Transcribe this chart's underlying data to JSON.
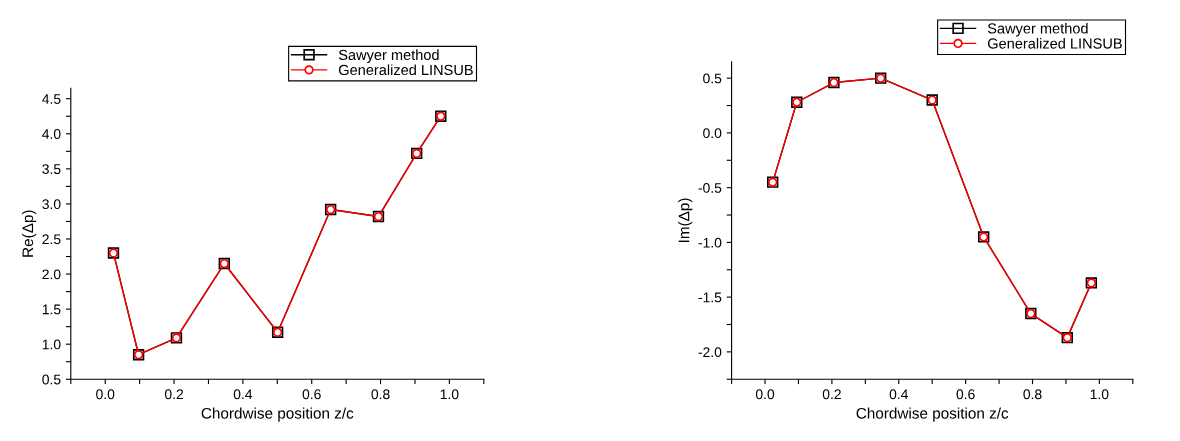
{
  "chart_data": [
    {
      "type": "line",
      "xlabel": "Chordwise position z/c",
      "ylabel": "Re(Δp)",
      "xlim": [
        -0.1,
        1.1
      ],
      "ylim": [
        0.5,
        4.65
      ],
      "xticks": [
        {
          "value": -0.1,
          "label": null
        },
        {
          "value": 0,
          "label": "0.0"
        },
        {
          "value": 0.1,
          "label": null
        },
        0.2,
        {
          "value": 0.3,
          "label": null
        },
        0.4,
        {
          "value": 0.5,
          "label": null
        },
        0.6,
        {
          "value": 0.7,
          "label": null
        },
        0.8,
        {
          "value": 0.9,
          "label": null
        },
        {
          "value": 1,
          "label": "1.0"
        },
        {
          "value": 1.1,
          "label": null
        }
      ],
      "yticks": [
        0.5,
        {
          "value": 0.75,
          "label": null
        },
        {
          "value": 1,
          "label": "1.0"
        },
        {
          "value": 1.25,
          "label": null
        },
        1.5,
        {
          "value": 1.75,
          "label": null
        },
        {
          "value": 2,
          "label": "2.0"
        },
        {
          "value": 2.25,
          "label": null
        },
        2.5,
        {
          "value": 2.75,
          "label": null
        },
        {
          "value": 3,
          "label": "3.0"
        },
        {
          "value": 3.25,
          "label": null
        },
        3.5,
        {
          "value": 3.75,
          "label": null
        },
        {
          "value": 4,
          "label": "4.0"
        },
        {
          "value": 4.25,
          "label": null
        },
        4.5
      ],
      "x": [
        0.024,
        0.097,
        0.207,
        0.346,
        0.501,
        0.655,
        0.794,
        0.905,
        0.975
      ],
      "series": [
        {
          "name": "Sawyer method",
          "color": "#000000",
          "marker": "square",
          "values": [
            2.3,
            0.85,
            1.09,
            2.15,
            1.17,
            2.92,
            2.82,
            3.72,
            4.25
          ]
        },
        {
          "name": "Generalized LINSUB",
          "color": "#ff0000",
          "marker": "circle",
          "values": [
            2.3,
            0.85,
            1.09,
            2.15,
            1.17,
            2.92,
            2.82,
            3.72,
            4.25
          ]
        }
      ],
      "legend": "top right",
      "grid": false
    },
    {
      "type": "line",
      "xlabel": "Chordwise position z/c",
      "ylabel": "Im(Δp)",
      "xlim": [
        -0.1,
        1.1
      ],
      "ylim": [
        -2.25,
        0.65
      ],
      "xticks": [
        {
          "value": -0.1,
          "label": null
        },
        {
          "value": 0,
          "label": "0.0"
        },
        {
          "value": 0.1,
          "label": null
        },
        0.2,
        {
          "value": 0.3,
          "label": null
        },
        0.4,
        {
          "value": 0.5,
          "label": null
        },
        0.6,
        {
          "value": 0.7,
          "label": null
        },
        0.8,
        {
          "value": 0.9,
          "label": null
        },
        {
          "value": 1,
          "label": "1.0"
        },
        {
          "value": 1.1,
          "label": null
        }
      ],
      "yticks": [
        {
          "value": -2.25,
          "label": null
        },
        {
          "value": -2,
          "label": "-2.0"
        },
        {
          "value": -1.75,
          "label": null
        },
        -1.5,
        {
          "value": -1.25,
          "label": null
        },
        {
          "value": -1,
          "label": "-1.0"
        },
        {
          "value": -0.75,
          "label": null
        },
        -0.5,
        {
          "value": -0.25,
          "label": null
        },
        {
          "value": 0,
          "label": "0.0"
        },
        {
          "value": 0.25,
          "label": null
        },
        0.5
      ],
      "x": [
        0.023,
        0.095,
        0.206,
        0.346,
        0.5,
        0.654,
        0.795,
        0.904,
        0.976
      ],
      "series": [
        {
          "name": "Sawyer method",
          "color": "#000000",
          "marker": "square",
          "values": [
            -0.45,
            0.28,
            0.46,
            0.5,
            0.3,
            -0.95,
            -1.65,
            -1.87,
            -1.37
          ]
        },
        {
          "name": "Generalized LINSUB",
          "color": "#ff0000",
          "marker": "circle",
          "values": [
            -0.45,
            0.28,
            0.46,
            0.5,
            0.3,
            -0.95,
            -1.65,
            -1.87,
            -1.37
          ]
        }
      ],
      "legend": "top right",
      "grid": false
    }
  ]
}
